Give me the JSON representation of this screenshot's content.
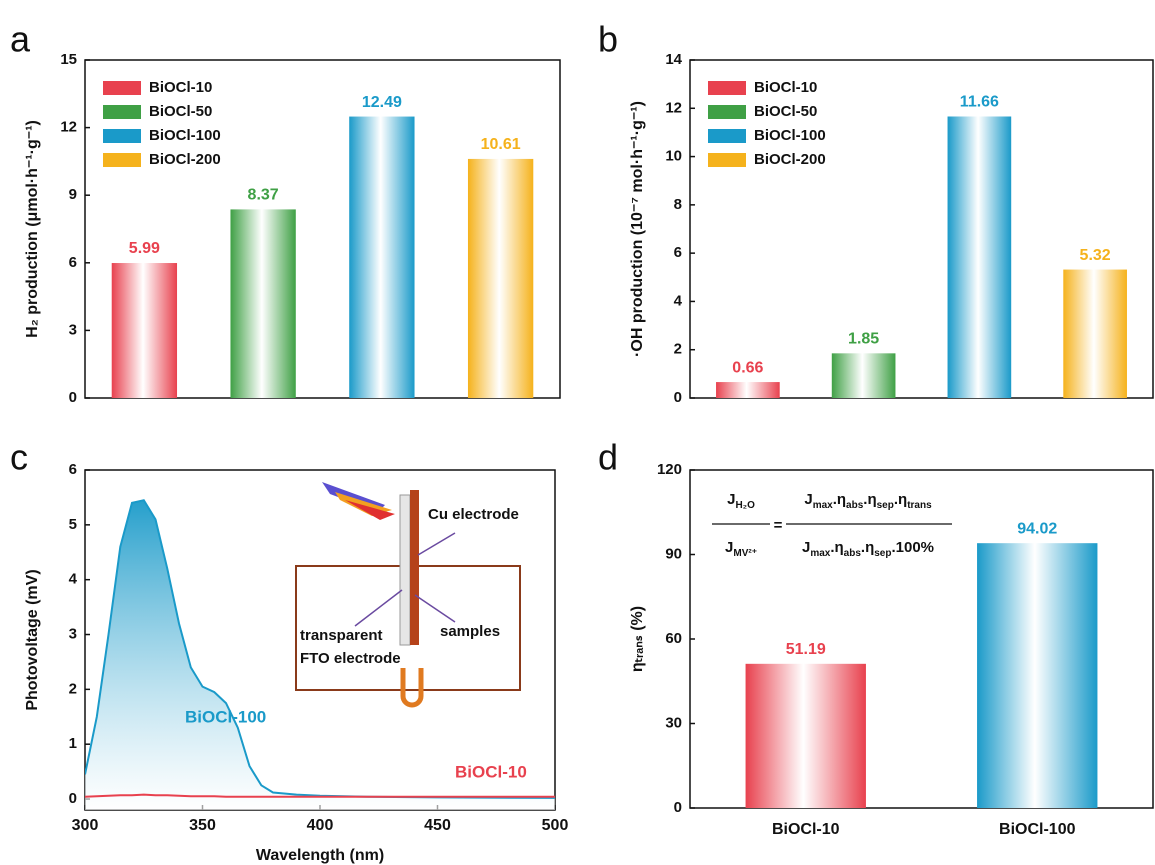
{
  "chart_data": [
    {
      "type": "bar",
      "panel_label": "a",
      "y_label": "H₂ production (μmol·h⁻¹·g⁻¹)",
      "series": [
        {
          "name": "BiOCl-10",
          "color": "#e8414e",
          "values": [
            5.99
          ]
        },
        {
          "name": "BiOCl-50",
          "color": "#3fa045",
          "values": [
            8.37
          ]
        },
        {
          "name": "BiOCl-100",
          "color": "#1a9ac9",
          "values": [
            12.49
          ]
        },
        {
          "name": "BiOCl-200",
          "color": "#f5b21c",
          "values": [
            10.61
          ]
        }
      ],
      "ylim": [
        0,
        15
      ],
      "yticks": [
        0,
        3,
        6,
        9,
        12,
        15
      ],
      "legend": "upper-left"
    },
    {
      "type": "bar",
      "panel_label": "b",
      "y_label": "·OH production (10⁻⁷ mol·h⁻¹·g⁻¹)",
      "series": [
        {
          "name": "BiOCl-10",
          "color": "#e8414e",
          "values": [
            0.66
          ]
        },
        {
          "name": "BiOCl-50",
          "color": "#3fa045",
          "values": [
            1.85
          ]
        },
        {
          "name": "BiOCl-100",
          "color": "#1a9ac9",
          "values": [
            11.66
          ]
        },
        {
          "name": "BiOCl-200",
          "color": "#f5b21c",
          "values": [
            5.32
          ]
        }
      ],
      "ylim": [
        0,
        14
      ],
      "yticks": [
        0,
        2,
        4,
        6,
        8,
        10,
        12,
        14
      ],
      "legend": "upper-left"
    },
    {
      "type": "line",
      "panel_label": "c",
      "x_label": "Wavelength (nm)",
      "y_label": "Photovoltage (mV)",
      "x": [
        300,
        305,
        310,
        315,
        320,
        325,
        330,
        335,
        340,
        345,
        350,
        355,
        360,
        365,
        370,
        375,
        380,
        390,
        400,
        420,
        450,
        500
      ],
      "series": [
        {
          "name": "BiOCl-100",
          "color": "#1a9ac9",
          "fill": true,
          "values": [
            0.45,
            1.5,
            3.0,
            4.6,
            5.4,
            5.45,
            5.1,
            4.2,
            3.2,
            2.4,
            2.05,
            1.95,
            1.75,
            1.3,
            0.6,
            0.25,
            0.12,
            0.08,
            0.06,
            0.04,
            0.03,
            0.02
          ]
        },
        {
          "name": "BiOCl-10",
          "color": "#e8414e",
          "fill": false,
          "values": [
            0.04,
            0.05,
            0.06,
            0.07,
            0.07,
            0.08,
            0.07,
            0.07,
            0.06,
            0.05,
            0.05,
            0.05,
            0.04,
            0.04,
            0.04,
            0.04,
            0.04,
            0.04,
            0.04,
            0.04,
            0.04,
            0.04
          ]
        }
      ],
      "xlim": [
        300,
        500
      ],
      "xticks": [
        300,
        350,
        400,
        450,
        500
      ],
      "ylim": [
        -0.2,
        6
      ],
      "yticks": [
        0,
        1,
        2,
        3,
        4,
        5,
        6
      ],
      "annotations": [
        "Cu electrode",
        "transparent",
        "FTO electrode",
        "samples"
      ]
    },
    {
      "type": "bar",
      "panel_label": "d",
      "y_label": "ηₜᵣₐₙₛ (%)",
      "categories": [
        "BiOCl-10",
        "BiOCl-100"
      ],
      "values": [
        51.19,
        94.02
      ],
      "colors": [
        "#e8414e",
        "#1a9ac9"
      ],
      "ylim": [
        0,
        120
      ],
      "yticks": [
        0,
        30,
        60,
        90,
        120
      ],
      "formula": {
        "left_top": [
          "J",
          "H₂O"
        ],
        "left_bottom": [
          "J",
          "MV²⁺"
        ],
        "equals": "=",
        "right_top": [
          "J",
          "max",
          ".η",
          "abs",
          ".η",
          "sep",
          ".η",
          "trans"
        ],
        "right_bottom": [
          "J",
          "max",
          ".η",
          "abs",
          ".η",
          "sep",
          ".100%"
        ]
      }
    }
  ]
}
